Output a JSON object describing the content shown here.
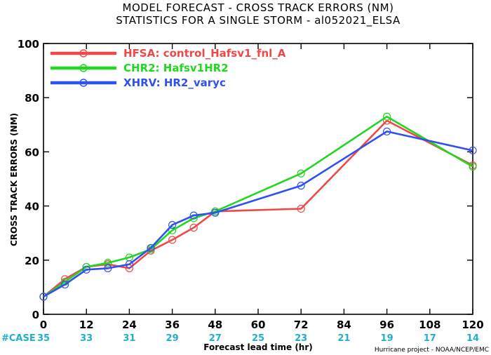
{
  "colors": {
    "hfsa": "#f04848",
    "chr2": "#20d820",
    "xhrv": "#3050f0",
    "cases": "#20b0c8"
  },
  "chart_data": {
    "type": "line",
    "title": "MODEL FORECAST - CROSS TRACK ERRORS (NM)",
    "subtitle": "STATISTICS FOR A SINGLE STORM - al052021_ELSA",
    "xlabel": "Forecast lead time (hr)",
    "ylabel": "CROSS TRACK ERRORS (NM)",
    "xlim": [
      0,
      120
    ],
    "ylim": [
      0,
      100
    ],
    "xticks": [
      0,
      12,
      24,
      36,
      48,
      60,
      72,
      84,
      96,
      108,
      120
    ],
    "yticks": [
      0,
      20,
      40,
      60,
      80,
      100
    ],
    "legend_position": "top-left",
    "grid": false,
    "series": [
      {
        "name": "HFSA:  control_Hafsv1_fnl_A",
        "color": "#f04848",
        "x": [
          0,
          6,
          12,
          18,
          24,
          30,
          36,
          42,
          48,
          72,
          96,
          120
        ],
        "y": [
          6.5,
          13,
          17.5,
          18.5,
          17,
          23.5,
          27.5,
          32,
          38,
          39,
          71.5,
          55
        ]
      },
      {
        "name": "CHR2:  Hafsv1HR2",
        "color": "#20d820",
        "x": [
          0,
          6,
          12,
          18,
          24,
          30,
          36,
          42,
          48,
          72,
          96,
          120
        ],
        "y": [
          6.5,
          12,
          17.5,
          19,
          21,
          24,
          31,
          35.5,
          38,
          52,
          73,
          54.5
        ]
      },
      {
        "name": "XHRV:  HR2_varyc",
        "color": "#3050f0",
        "x": [
          0,
          6,
          12,
          18,
          24,
          30,
          36,
          42,
          48,
          72,
          96,
          120
        ],
        "y": [
          6.5,
          11,
          16.5,
          17,
          18.5,
          24.5,
          33,
          36.5,
          37.5,
          47.5,
          67.5,
          60.5
        ]
      }
    ],
    "cases": {
      "label": "#CASE",
      "x": [
        0,
        12,
        24,
        36,
        48,
        60,
        72,
        84,
        96,
        108,
        120
      ],
      "values": [
        "35",
        "33",
        "31",
        "29",
        "27",
        "25",
        "23",
        "21",
        "19",
        "17",
        "14"
      ]
    },
    "credit": "Hurricane project - NOAA/NCEP/EMC"
  }
}
